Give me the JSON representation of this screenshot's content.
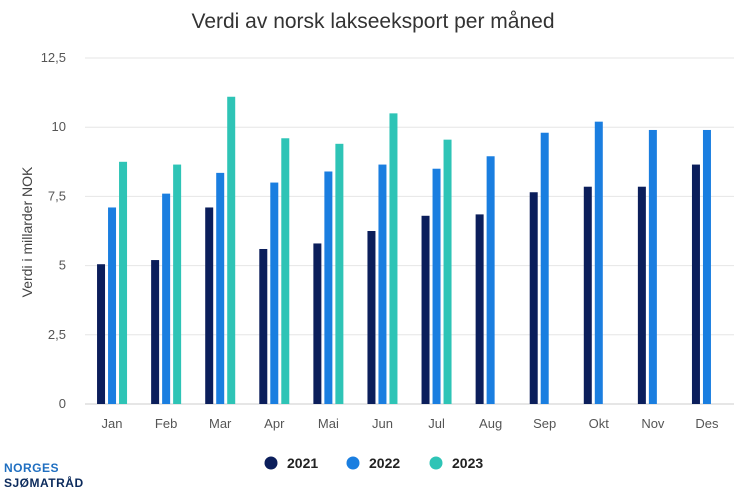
{
  "chart_data": {
    "type": "bar",
    "title": "Verdi av norsk lakseeksport per måned",
    "ylabel": "Verdi i millarder NOK",
    "xlabel": "",
    "ylim": [
      0,
      12.5
    ],
    "yticks": [
      0,
      2.5,
      5,
      7.5,
      10,
      12.5
    ],
    "ytick_labels": [
      "0",
      "2,5",
      "5",
      "7,5",
      "10",
      "12,5"
    ],
    "grid": true,
    "legend": "bottom-center",
    "categories": [
      "Jan",
      "Feb",
      "Mar",
      "Apr",
      "Mai",
      "Jun",
      "Jul",
      "Aug",
      "Sep",
      "Okt",
      "Nov",
      "Des"
    ],
    "series": [
      {
        "name": "2021",
        "color": "#0b1e5b",
        "values": [
          5.05,
          5.2,
          7.1,
          5.6,
          5.8,
          6.25,
          6.8,
          6.85,
          7.65,
          7.85,
          7.85,
          8.65
        ]
      },
      {
        "name": "2022",
        "color": "#1a7ee0",
        "values": [
          7.1,
          7.6,
          8.35,
          8.0,
          8.4,
          8.65,
          8.5,
          8.95,
          9.8,
          10.2,
          9.9,
          9.9
        ]
      },
      {
        "name": "2023",
        "color": "#2ec4b6",
        "values": [
          8.75,
          8.65,
          11.1,
          9.6,
          9.4,
          10.5,
          9.55,
          null,
          null,
          null,
          null,
          null
        ]
      }
    ]
  },
  "logo": {
    "line1": "NORGES",
    "line2": "SJØMATRÅD"
  }
}
